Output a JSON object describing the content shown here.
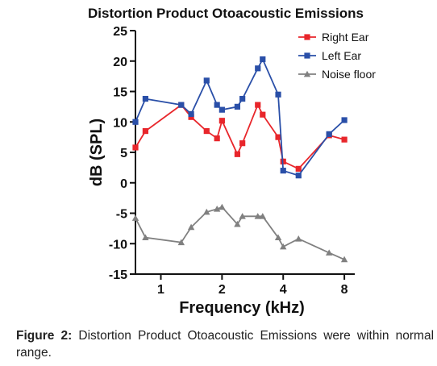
{
  "chart_data": {
    "type": "line",
    "title": "Distortion Product Otoacoustic Emissions",
    "xlabel": "Frequency (kHz)",
    "ylabel": "dB (SPL)",
    "x_scale": "log2",
    "xlim": [
      0.75,
      9.0
    ],
    "ylim": [
      -15,
      25
    ],
    "x_ticks": [
      1,
      2,
      4,
      8
    ],
    "x_tick_labels": [
      "1",
      "2",
      "4",
      "8"
    ],
    "y_ticks": [
      -15,
      -10,
      -5,
      0,
      5,
      10,
      15,
      20,
      25
    ],
    "y_tick_labels": [
      "-15",
      "-10",
      "-5",
      "0",
      "5",
      "10",
      "15",
      "20",
      "25"
    ],
    "grid": false,
    "legend_position": "top-right",
    "series": [
      {
        "name": "Right Ear",
        "color": "#e8262b",
        "marker": "square",
        "x": [
          0.75,
          0.84,
          1.26,
          1.41,
          1.68,
          1.89,
          2.0,
          2.38,
          2.52,
          3.0,
          3.17,
          3.78,
          4.0,
          4.76,
          6.73,
          8.0
        ],
        "y": [
          5.8,
          8.5,
          12.8,
          10.8,
          8.5,
          7.3,
          10.2,
          4.7,
          6.5,
          12.8,
          11.2,
          7.5,
          3.5,
          2.3,
          7.8,
          7.1
        ]
      },
      {
        "name": "Left Ear",
        "color": "#2a4fa8",
        "marker": "square",
        "x": [
          0.75,
          0.84,
          1.26,
          1.41,
          1.68,
          1.89,
          2.0,
          2.38,
          2.52,
          3.0,
          3.17,
          3.78,
          4.0,
          4.76,
          6.73,
          8.0
        ],
        "y": [
          10.0,
          13.8,
          12.8,
          11.3,
          16.8,
          12.8,
          12.0,
          12.5,
          13.8,
          18.8,
          20.3,
          14.5,
          2.0,
          1.2,
          8.0,
          10.3
        ]
      },
      {
        "name": "Noise floor",
        "color": "#808080",
        "marker": "triangle",
        "x": [
          0.75,
          0.84,
          1.26,
          1.41,
          1.68,
          1.89,
          2.0,
          2.38,
          2.52,
          3.0,
          3.17,
          3.78,
          4.0,
          4.76,
          6.73,
          8.0
        ],
        "y": [
          -5.8,
          -9.0,
          -9.8,
          -7.3,
          -4.8,
          -4.3,
          -4.0,
          -6.8,
          -5.5,
          -5.5,
          -5.5,
          -9.0,
          -10.5,
          -9.2,
          -11.5,
          -12.6
        ]
      }
    ]
  },
  "caption": {
    "label": "Figure 2:",
    "text": "Distortion Product Otoacoustic Emissions were within normal range."
  }
}
